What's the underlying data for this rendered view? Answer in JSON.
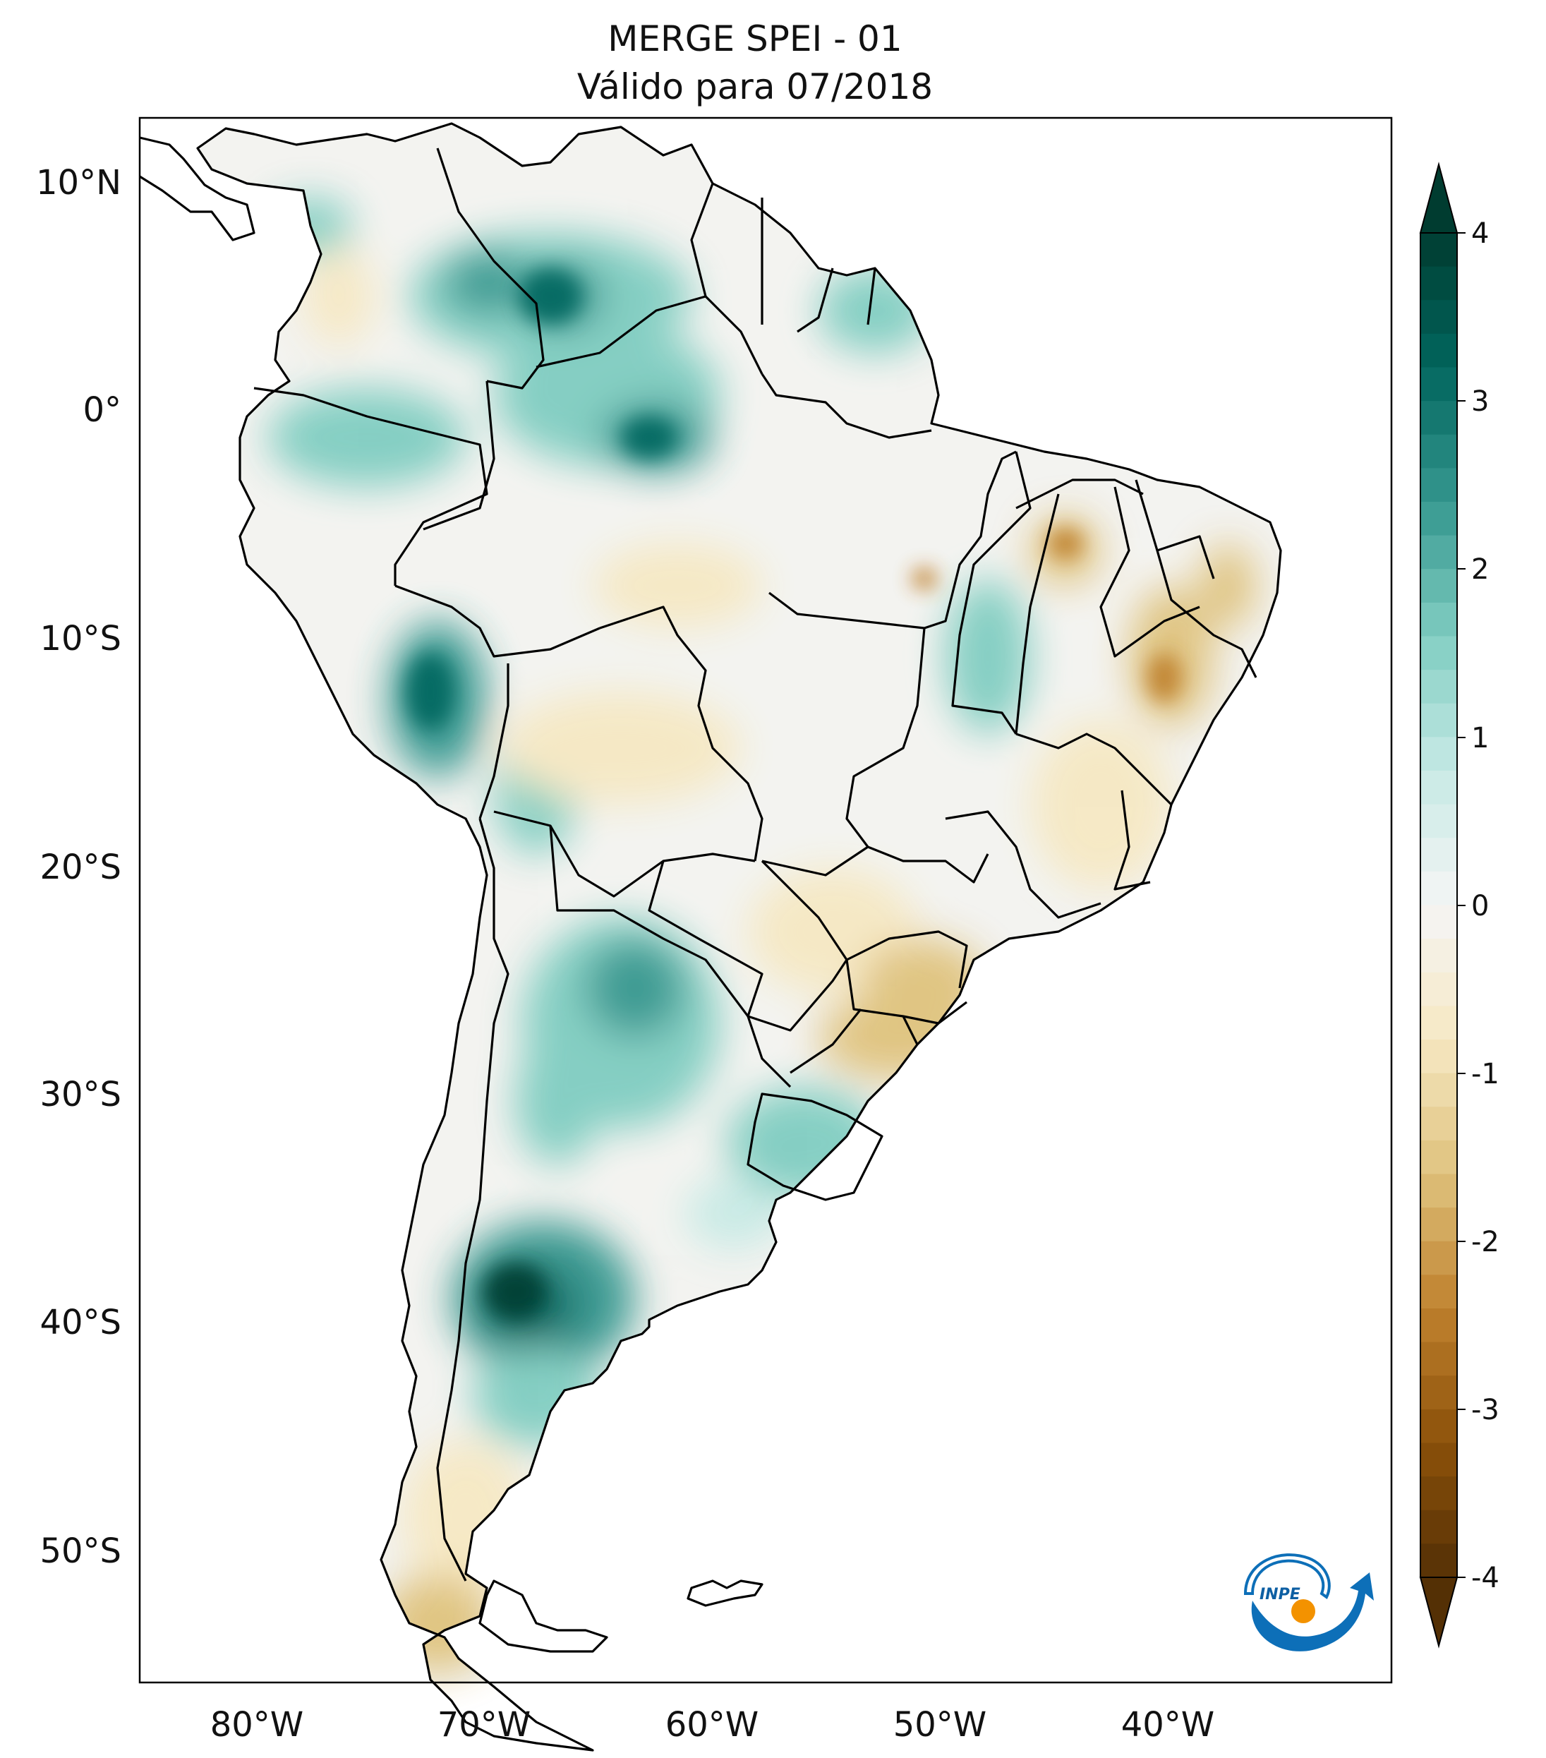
{
  "title": {
    "line1": "MERGE   SPEI - 01",
    "line2": "Válido para 07/2018"
  },
  "axes": {
    "lat_labels": [
      "10°N",
      "0°",
      "10°S",
      "20°S",
      "30°S",
      "40°S",
      "50°S"
    ],
    "lon_labels": [
      "80°W",
      "70°W",
      "60°W",
      "50°W",
      "40°W"
    ]
  },
  "colorbar": {
    "ticks": [
      "4",
      "3",
      "2",
      "1",
      "0",
      "-1",
      "-2",
      "-3",
      "-4"
    ],
    "range": [
      -4,
      4
    ],
    "colors": {
      "dry_extreme": "#543005",
      "dry_strong": "#8c510a",
      "dry_moderate": "#bf812d",
      "dry_mild": "#dfc27d",
      "dry_weak": "#f6e8c3",
      "neutral": "#f5f5f5",
      "wet_weak": "#c7eae5",
      "wet_mild": "#80cdc1",
      "wet_moderate": "#35978f",
      "wet_strong": "#01665e",
      "wet_extreme": "#003c30"
    }
  },
  "logo": {
    "text": "INPE",
    "colors": {
      "blue": "#0d6fb8",
      "orange": "#f39200"
    }
  }
}
